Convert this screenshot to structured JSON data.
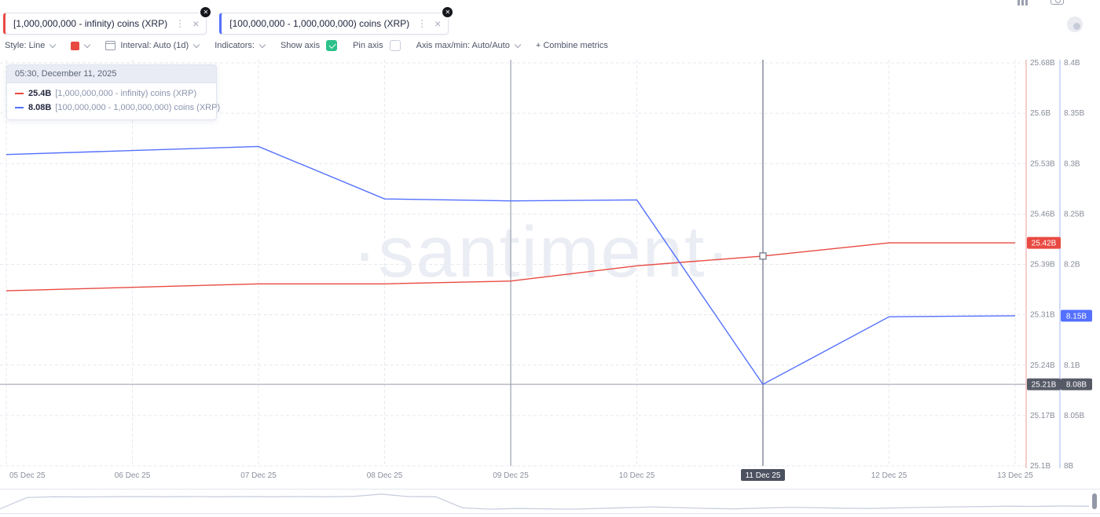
{
  "header": {
    "tabs": [
      {
        "label": "[1,000,000,000 - infinity) coins (XRP)",
        "color": "#e84a42",
        "menu_icon": "⋮",
        "close_icon": "×",
        "badge_icon": "✕"
      },
      {
        "label": "[100,000,000 - 1,000,000,000) coins (XRP)",
        "color": "#5470ff",
        "menu_icon": "⋮",
        "close_icon": "×",
        "badge_icon": "✕"
      }
    ]
  },
  "toolbar": {
    "style_label": "Style: Line",
    "interval_label": "Interval: Auto (1d)",
    "indicators_label": "Indicators:",
    "show_axis_label": "Show axis",
    "pin_axis_label": "Pin axis",
    "axis_maxmin_label": "Axis max/min: Auto/Auto",
    "combine_label": "+ Combine metrics",
    "swatch_color": "#e84a42",
    "checkbox_color": "#2bc18a",
    "show_axis_checked": true,
    "pin_axis_checked": false
  },
  "tooltip": {
    "header": "05:30, December 11, 2025",
    "rows": [
      {
        "value": "25.4B",
        "label": "[1,000,000,000 - infinity) coins (XRP)",
        "color": "#e84a42"
      },
      {
        "value": "8.08B",
        "label": "[100,000,000 - 1,000,000,000) coins (XRP)",
        "color": "#5470ff"
      }
    ]
  },
  "watermark": "·santiment·",
  "chart_data": {
    "type": "line",
    "x": [
      "05 Dec 25",
      "06 Dec 25",
      "07 Dec 25",
      "08 Dec 25",
      "09 Dec 25",
      "10 Dec 25",
      "11 Dec 25",
      "12 Dec 25",
      "13 Dec 25"
    ],
    "series": [
      {
        "name": "[1,000,000,000 - infinity) coins (XRP)",
        "axis": "left",
        "color": "#e84a42",
        "values": [
          25.352,
          25.357,
          25.362,
          25.362,
          25.366,
          25.388,
          25.402,
          25.421,
          25.421
        ]
      },
      {
        "name": "[100,000,000 - 1,000,000,000) coins (XRP)",
        "axis": "right",
        "color": "#5470ff",
        "values": [
          8.309,
          8.313,
          8.317,
          8.265,
          8.263,
          8.264,
          8.081,
          8.148,
          8.149
        ]
      }
    ],
    "left_axis": {
      "min": 25.1,
      "max": 25.68,
      "line_color": "#f2beba",
      "ticks": [
        "25.68B",
        "25.6B",
        "25.53B",
        "25.46B",
        "25.39B",
        "25.31B",
        "25.24B",
        "25.17B",
        "25.1B"
      ],
      "last_value_badge": {
        "text": "25.42B",
        "color": "#e84a42"
      },
      "crosshair_badge": {
        "text": "25.21B",
        "color": "#555a66"
      }
    },
    "right_axis": {
      "min": 8.0,
      "max": 8.4,
      "line_color": "#c3cdf5",
      "ticks": [
        "8.4B",
        "8.35B",
        "8.3B",
        "8.25B",
        "8.2B",
        "8.15B",
        "8.1B",
        "8.05B",
        "8B"
      ],
      "last_value_badge": {
        "text": "8.15B",
        "color": "#5470ff"
      },
      "crosshair_badge": {
        "text": "8.08B",
        "color": "#555a66"
      }
    },
    "crosshair": {
      "index": 6,
      "x_label": "11 Dec 25",
      "y_value": 8.081,
      "marker_series": 0
    },
    "extra_vline_index": 4,
    "grid": true,
    "legend_position": "top-left",
    "navigator": [
      0.1,
      0.7,
      0.74,
      0.73,
      0.74,
      0.75,
      0.74,
      0.75,
      0.74,
      0.75,
      0.74,
      0.75,
      0.74,
      0.76,
      0.88,
      0.75,
      0.74,
      0.15,
      0.08,
      0.12,
      0.1,
      0.08,
      0.12,
      0.16,
      0.2,
      0.16,
      0.12,
      0.1,
      0.14,
      0.18,
      0.16,
      0.13,
      0.12,
      0.15,
      0.18,
      0.2,
      0.22,
      0.24,
      0.23,
      0.25,
      0.24
    ]
  }
}
